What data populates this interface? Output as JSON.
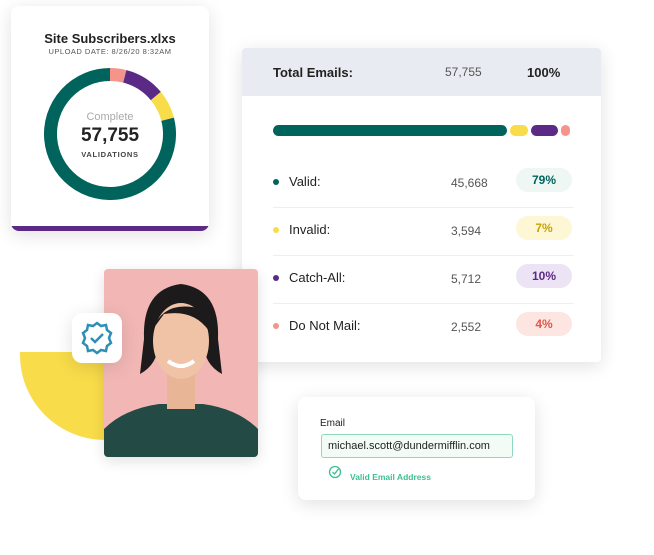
{
  "file_card": {
    "title": "Site Subscribers.xlxs",
    "upload_date": "UPLOAD DATE: 8/26/20 8:32AM",
    "center_label": "Complete",
    "center_value": "57,755",
    "center_sub": "VALIDATIONS"
  },
  "summary": {
    "header_label": "Total Emails:",
    "header_count": "57,755",
    "header_percent": "100%",
    "rows": [
      {
        "label": "Valid:",
        "count": "45,668",
        "percent": "79%",
        "value": 79,
        "color": "#00645c",
        "bg": "#eef7f4",
        "fg": "#00645c"
      },
      {
        "label": "Invalid:",
        "count": "3,594",
        "percent": "7%",
        "value": 7,
        "color": "#f9dc4a",
        "bg": "#fdf7d6",
        "fg": "#c9a400"
      },
      {
        "label": "Catch-All:",
        "count": "5,712",
        "percent": "10%",
        "value": 10,
        "color": "#5b2a86",
        "bg": "#ece3f4",
        "fg": "#5b2a86"
      },
      {
        "label": "Do Not Mail:",
        "count": "2,552",
        "percent": "4%",
        "value": 4,
        "color": "#f4948a",
        "bg": "#fde6e2",
        "fg": "#e0574a"
      }
    ]
  },
  "email_form": {
    "label": "Email",
    "value": "michael.scott@dundermifflin.com",
    "status": "Valid Email Address",
    "status_icon": "check-circle-icon"
  },
  "badge_icon": "verified-badge-icon",
  "colors": {
    "accent_yellow": "#f9dc4a",
    "valid_green": "#3dbf8f"
  }
}
